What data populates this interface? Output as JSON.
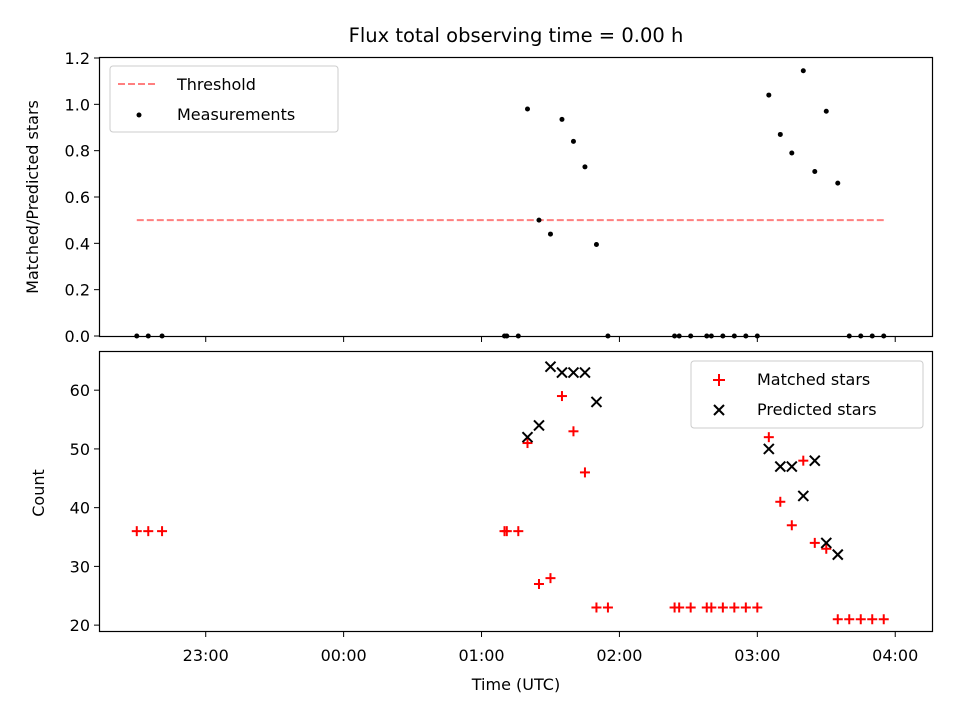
{
  "chart_data": [
    {
      "type": "scatter",
      "title": "Flux total observing time = 0.00 h",
      "xlabel": "",
      "ylabel": "Matched/Predicted stars",
      "ylim": [
        0,
        1.2
      ],
      "xlim": [
        "22:14",
        "04:16"
      ],
      "yticks": [
        "0.0",
        "0.2",
        "0.4",
        "0.6",
        "0.8",
        "1.0",
        "1.2"
      ],
      "legend": {
        "position": "top-left"
      },
      "threshold": {
        "name": "Threshold",
        "value": 0.5,
        "x_start": "22:30",
        "x_end": "03:55",
        "color": "#ff7f7f",
        "style": "dashed"
      },
      "series": [
        {
          "name": "Measurements",
          "color": "#000000",
          "marker": "dot",
          "points": [
            [
              "22:30",
              0.0
            ],
            [
              "22:35",
              0.0
            ],
            [
              "22:41",
              0.0
            ],
            [
              "01:10",
              0.0
            ],
            [
              "01:11",
              0.0
            ],
            [
              "01:16",
              0.0
            ],
            [
              "01:20",
              0.98
            ],
            [
              "01:25",
              0.5
            ],
            [
              "01:30",
              0.44
            ],
            [
              "01:35",
              0.935
            ],
            [
              "01:40",
              0.84
            ],
            [
              "01:45",
              0.73
            ],
            [
              "01:50",
              0.395
            ],
            [
              "01:55",
              0.0
            ],
            [
              "02:24",
              0.0
            ],
            [
              "02:26",
              0.0
            ],
            [
              "02:31",
              0.0
            ],
            [
              "02:38",
              0.0
            ],
            [
              "02:40",
              0.0
            ],
            [
              "02:45",
              0.0
            ],
            [
              "02:50",
              0.0
            ],
            [
              "02:55",
              0.0
            ],
            [
              "03:00",
              0.0
            ],
            [
              "03:05",
              1.04
            ],
            [
              "03:10",
              0.87
            ],
            [
              "03:15",
              0.79
            ],
            [
              "03:20",
              1.145
            ],
            [
              "03:25",
              0.71
            ],
            [
              "03:30",
              0.97
            ],
            [
              "03:35",
              0.66
            ],
            [
              "03:40",
              0.0
            ],
            [
              "03:45",
              0.0
            ],
            [
              "03:50",
              0.0
            ],
            [
              "03:55",
              0.0
            ]
          ]
        }
      ]
    },
    {
      "type": "scatter",
      "title": "",
      "xlabel": "Time (UTC)",
      "ylabel": "Count",
      "ylim": [
        19,
        66.5
      ],
      "xlim": [
        "22:14",
        "04:16"
      ],
      "yticks": [
        "20",
        "30",
        "40",
        "50",
        "60"
      ],
      "xticks": [
        "23:00",
        "00:00",
        "01:00",
        "02:00",
        "03:00",
        "04:00"
      ],
      "legend": {
        "position": "top-right"
      },
      "series": [
        {
          "name": "Matched stars",
          "color": "#ff0000",
          "marker": "plus",
          "points": [
            [
              "22:30",
              36
            ],
            [
              "22:35",
              36
            ],
            [
              "22:41",
              36
            ],
            [
              "01:10",
              36
            ],
            [
              "01:11",
              36
            ],
            [
              "01:16",
              36
            ],
            [
              "01:20",
              51
            ],
            [
              "01:25",
              27
            ],
            [
              "01:30",
              28
            ],
            [
              "01:35",
              59
            ],
            [
              "01:40",
              53
            ],
            [
              "01:45",
              46
            ],
            [
              "01:50",
              23
            ],
            [
              "01:55",
              23
            ],
            [
              "02:24",
              23
            ],
            [
              "02:26",
              23
            ],
            [
              "02:31",
              23
            ],
            [
              "02:38",
              23
            ],
            [
              "02:40",
              23
            ],
            [
              "02:45",
              23
            ],
            [
              "02:50",
              23
            ],
            [
              "02:55",
              23
            ],
            [
              "03:00",
              23
            ],
            [
              "03:05",
              52
            ],
            [
              "03:10",
              41
            ],
            [
              "03:15",
              37
            ],
            [
              "03:20",
              48
            ],
            [
              "03:25",
              34
            ],
            [
              "03:30",
              33
            ],
            [
              "03:35",
              21
            ],
            [
              "03:40",
              21
            ],
            [
              "03:45",
              21
            ],
            [
              "03:50",
              21
            ],
            [
              "03:55",
              21
            ]
          ]
        },
        {
          "name": "Predicted stars",
          "color": "#000000",
          "marker": "x",
          "points": [
            [
              "01:20",
              52
            ],
            [
              "01:25",
              54
            ],
            [
              "01:30",
              64
            ],
            [
              "01:35",
              63
            ],
            [
              "01:40",
              63
            ],
            [
              "01:45",
              63
            ],
            [
              "01:50",
              58
            ],
            [
              "03:05",
              50
            ],
            [
              "03:10",
              47
            ],
            [
              "03:15",
              47
            ],
            [
              "03:20",
              42
            ],
            [
              "03:25",
              48
            ],
            [
              "03:30",
              34
            ],
            [
              "03:35",
              32
            ]
          ]
        }
      ]
    }
  ]
}
